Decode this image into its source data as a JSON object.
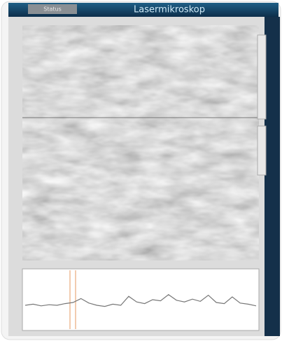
{
  "header": {
    "title": "Lasermikroskop",
    "tab": "Status"
  },
  "profile": {
    "type": "line",
    "values": [
      4,
      4.2,
      3.9,
      4.1,
      4,
      4.3,
      4.5,
      5.2,
      4.4,
      4.0,
      3.8,
      4.2,
      4,
      5.6,
      4.6,
      4.3,
      5.0,
      4.8,
      5.9,
      4.9,
      4.6,
      5.1,
      4.7,
      5.8,
      4.5,
      4.3,
      5.5,
      4.4,
      4.2,
      3.9
    ],
    "ylim": [
      0,
      10
    ],
    "color": "#777777"
  }
}
